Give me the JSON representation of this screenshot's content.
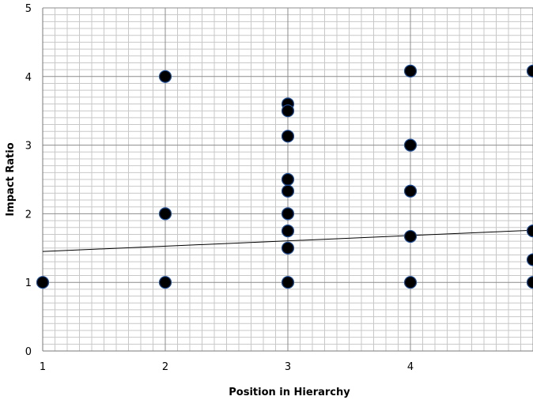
{
  "chart_data": {
    "type": "scatter",
    "title": "",
    "xlabel": "Position in Hierarchy",
    "ylabel": "Impact Ratio",
    "xlim": [
      1,
      5
    ],
    "ylim": [
      0,
      5
    ],
    "x_ticks": [
      "1",
      "2",
      "3",
      "4"
    ],
    "y_ticks": [
      "0",
      "1",
      "2",
      "3",
      "4",
      "5"
    ],
    "grid": true,
    "legend": "none",
    "points": [
      {
        "x": 1,
        "y": 1
      },
      {
        "x": 2,
        "y": 4.0
      },
      {
        "x": 2,
        "y": 2.0
      },
      {
        "x": 2,
        "y": 1.0
      },
      {
        "x": 3,
        "y": 3.6
      },
      {
        "x": 3,
        "y": 3.5
      },
      {
        "x": 3,
        "y": 3.13
      },
      {
        "x": 3,
        "y": 2.5
      },
      {
        "x": 3,
        "y": 2.33
      },
      {
        "x": 3,
        "y": 2.0
      },
      {
        "x": 3,
        "y": 1.75
      },
      {
        "x": 3,
        "y": 1.5
      },
      {
        "x": 3,
        "y": 1.0
      },
      {
        "x": 4,
        "y": 4.08
      },
      {
        "x": 4,
        "y": 3.0
      },
      {
        "x": 4,
        "y": 2.33
      },
      {
        "x": 4,
        "y": 1.67
      },
      {
        "x": 4,
        "y": 1.0
      },
      {
        "x": 5,
        "y": 4.08
      },
      {
        "x": 5,
        "y": 1.75
      },
      {
        "x": 5,
        "y": 1.33
      },
      {
        "x": 5,
        "y": 1.0
      }
    ],
    "trendline": {
      "type": "linear",
      "x": [
        1,
        5
      ],
      "y": [
        1.45,
        1.76
      ]
    },
    "colors": {
      "marker_fill": "#000000",
      "marker_stroke": "#1f4e9a",
      "trendline": "#000000",
      "major_grid": "#8c8c8c",
      "minor_grid": "#c8c8c8"
    }
  }
}
